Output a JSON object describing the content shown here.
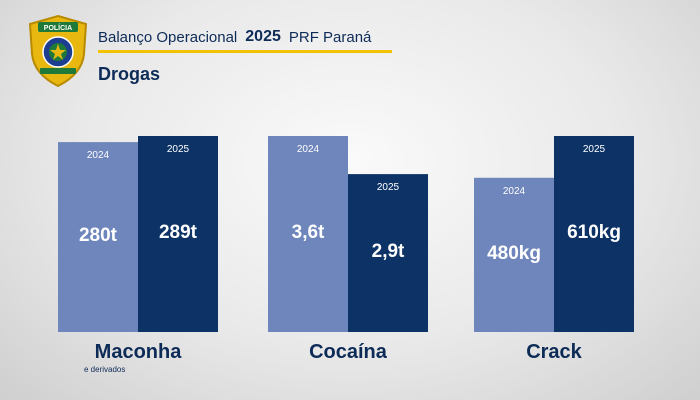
{
  "header": {
    "title": "Balanço Operacional",
    "year": "2025",
    "org": "PRF Paraná",
    "section": "Drogas"
  },
  "badge": {
    "text": "POLÍCIA",
    "icon": "prf-shield-badge-icon",
    "colors": {
      "gold": "#e8b810",
      "green": "#1f7a3a",
      "blue": "#1d3d8f"
    }
  },
  "colors": {
    "bar_2024": "#6e86bc",
    "bar_2025": "#0d3366",
    "label_text": "#ffffff",
    "category_text": "#0d2b57",
    "baseline": "#6b6b6b"
  },
  "chart_data": {
    "type": "bar",
    "categories": [
      "Maconha",
      "Cocaína",
      "Crack"
    ],
    "category_subtitles": [
      "e derivados",
      "",
      ""
    ],
    "series_names": [
      "2024",
      "2025"
    ],
    "groups": [
      {
        "category": "Maconha",
        "values": [
          280,
          289
        ],
        "labels": [
          "280t",
          "289t"
        ],
        "unit": "t"
      },
      {
        "category": "Cocaína",
        "values": [
          3.6,
          2.9
        ],
        "labels": [
          "3,6t",
          "2,9t"
        ],
        "unit": "t"
      },
      {
        "category": "Crack",
        "values": [
          480,
          610
        ],
        "labels": [
          "480kg",
          "610kg"
        ],
        "unit": "kg"
      }
    ],
    "note": "Each group is scaled independently; the taller bar per group reaches a common height."
  }
}
